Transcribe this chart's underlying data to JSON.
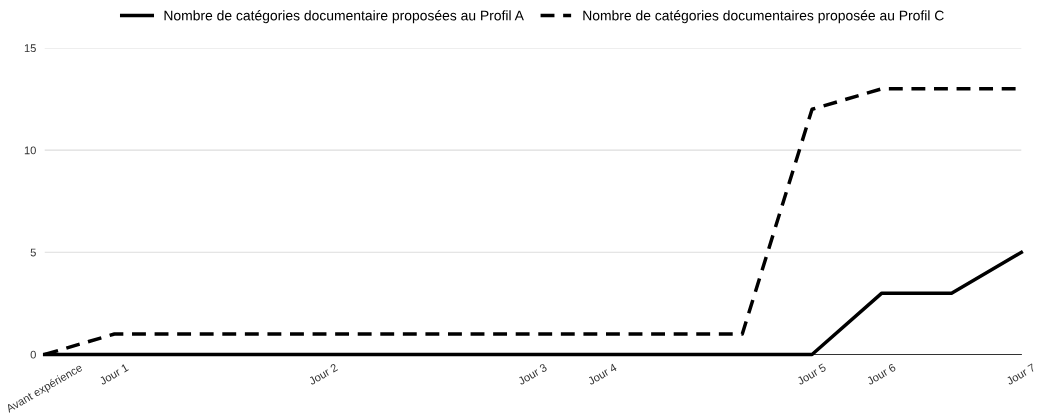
{
  "chart_data": {
    "type": "line",
    "categories": [
      "Avant expérience",
      "Jour 1",
      null,
      null,
      "Jour 2",
      null,
      null,
      "Jour 3",
      "Jour 4",
      null,
      null,
      "Jour 5",
      "Jour 6",
      null,
      "Jour 7"
    ],
    "series": [
      {
        "name": "Nombre de catégories documentaire proposées au Profil A",
        "color": "#000000",
        "line_style": "solid",
        "values": [
          0,
          0,
          0,
          0,
          0,
          0,
          0,
          0,
          0,
          0,
          0,
          0,
          3,
          3,
          5
        ]
      },
      {
        "name": "Nombre de catégories documentaires proposée au Profil C",
        "color": "#000000",
        "line_style": "dashed",
        "values": [
          0,
          1,
          1,
          1,
          1,
          1,
          1,
          1,
          1,
          1,
          1,
          12,
          13,
          13,
          13
        ]
      }
    ],
    "ylim": [
      0,
      15
    ],
    "yticks": [
      0,
      5,
      10,
      15
    ],
    "grid": "y",
    "legend": "top",
    "marker": "none"
  }
}
